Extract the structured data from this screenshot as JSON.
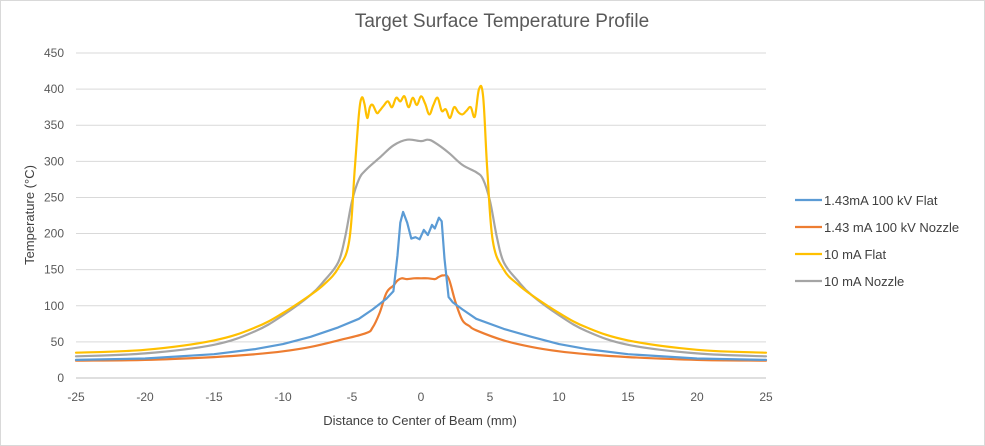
{
  "chart_data": {
    "type": "line",
    "title": "Target Surface Temperature Profile",
    "xlabel": "Distance to Center of Beam (mm)",
    "ylabel": "Temperature (°C)",
    "xlim": [
      -25,
      25
    ],
    "ylim": [
      0,
      450
    ],
    "xticks": [
      -25,
      -20,
      -15,
      -10,
      -5,
      0,
      5,
      10,
      15,
      20,
      25
    ],
    "yticks": [
      0,
      50,
      100,
      150,
      200,
      250,
      300,
      350,
      400,
      450
    ],
    "grid": "horizontal",
    "legend_position": "right",
    "series": [
      {
        "name": "1.43mA 100 kV Flat",
        "color": "#5b9bd5",
        "x": [
          -25,
          -20,
          -15,
          -12,
          -10,
          -8,
          -6,
          -4.5,
          -3.5,
          -2.5,
          -2,
          -1.7,
          -1.5,
          -1.3,
          -1.0,
          -0.7,
          -0.4,
          -0.1,
          0.2,
          0.5,
          0.8,
          1.0,
          1.3,
          1.5,
          1.7,
          2.0,
          2.3,
          3,
          4,
          6,
          8,
          10,
          12,
          15,
          20,
          25
        ],
        "y": [
          25,
          27,
          33,
          40,
          47,
          57,
          70,
          82,
          95,
          110,
          120,
          170,
          215,
          230,
          215,
          193,
          195,
          192,
          205,
          198,
          212,
          207,
          222,
          217,
          165,
          112,
          105,
          95,
          82,
          68,
          57,
          47,
          40,
          33,
          27,
          25
        ]
      },
      {
        "name": "1.43 mA 100 kV Nozzle",
        "color": "#ed7d31",
        "x": [
          -25,
          -20,
          -15,
          -12,
          -10,
          -8,
          -6,
          -4,
          -3.5,
          -3,
          -2.5,
          -2,
          -1.7,
          -1.4,
          -1,
          -0.5,
          0,
          0.5,
          1,
          1.3,
          1.6,
          2,
          2.5,
          3,
          3.5,
          4,
          6,
          8,
          10,
          12,
          15,
          20,
          25
        ],
        "y": [
          24,
          25,
          29,
          33,
          37,
          43,
          52,
          62,
          70,
          90,
          118,
          128,
          135,
          138,
          137,
          138,
          138,
          138,
          137,
          140,
          142,
          138,
          105,
          80,
          72,
          66,
          52,
          43,
          37,
          33,
          29,
          25,
          24
        ],
        "smooth": true
      },
      {
        "name": "10 mA Flat",
        "color": "#ffc000",
        "x": [
          -25,
          -20,
          -15,
          -12,
          -10,
          -8,
          -7,
          -6,
          -5.2,
          -4.8,
          -4.5,
          -4.3,
          -4.1,
          -3.9,
          -3.7,
          -3.5,
          -3.2,
          -3.0,
          -2.7,
          -2.4,
          -2.1,
          -1.8,
          -1.5,
          -1.2,
          -0.9,
          -0.6,
          -0.3,
          0,
          0.3,
          0.6,
          0.9,
          1.2,
          1.5,
          1.8,
          2.1,
          2.4,
          2.7,
          3.0,
          3.3,
          3.6,
          3.9,
          4.2,
          4.5,
          4.8,
          5.2,
          6,
          7,
          8,
          10,
          12,
          15,
          20,
          25
        ],
        "y": [
          35,
          39,
          52,
          70,
          90,
          115,
          130,
          152,
          190,
          290,
          365,
          388,
          380,
          360,
          375,
          378,
          367,
          370,
          377,
          383,
          375,
          388,
          383,
          390,
          375,
          388,
          378,
          390,
          380,
          365,
          378,
          388,
          370,
          372,
          360,
          375,
          368,
          365,
          370,
          375,
          362,
          400,
          390,
          290,
          190,
          150,
          130,
          115,
          90,
          70,
          52,
          39,
          35
        ],
        "smooth": true
      },
      {
        "name": "10 mA Nozzle",
        "color": "#a5a5a5",
        "x": [
          -25,
          -20,
          -15,
          -12,
          -10,
          -8,
          -7,
          -6,
          -5.5,
          -5,
          -4.5,
          -4,
          -3,
          -2,
          -1,
          0,
          0.5,
          1,
          2,
          3,
          4,
          4.5,
          5,
          5.5,
          6,
          7,
          8,
          10,
          12,
          15,
          20,
          25
        ],
        "y": [
          30,
          34,
          46,
          65,
          87,
          115,
          135,
          160,
          195,
          245,
          275,
          288,
          305,
          322,
          330,
          328,
          330,
          326,
          312,
          295,
          285,
          275,
          245,
          195,
          160,
          135,
          115,
          87,
          65,
          46,
          34,
          30
        ],
        "smooth": true
      }
    ]
  }
}
